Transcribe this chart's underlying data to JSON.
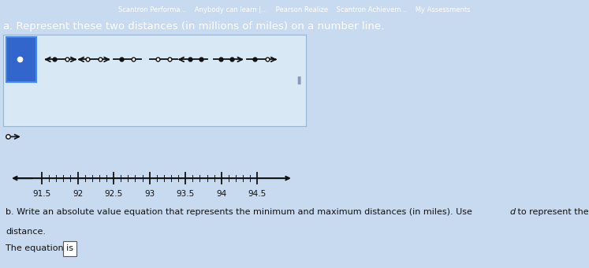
{
  "bg_color": "#c8daf0",
  "bg_color_light": "#d8e8f5",
  "bg_color_panel": "#cfe0f0",
  "nav_bar_color": "#2255a0",
  "nav_text": "Scantron Performa...    Anybody can learn |...    Pearson Realize    Scantron Achievem...    My Assessments",
  "title_text": "a. Represent these two distances (in millions of miles) on a number line.",
  "title_color": "#111133",
  "title_fontsize": 9.5,
  "number_line_ticks": [
    91.5,
    92.0,
    92.5,
    93.0,
    93.5,
    94.0,
    94.5
  ],
  "number_line_labels": [
    "91.5",
    "92",
    "92.5",
    "93",
    "93.5",
    "94",
    "94.5"
  ],
  "panel_border_color": "#9ab5d0",
  "selected_box_color": "#3366cc",
  "selected_box_border": "#4488ee",
  "dot_color": "#ffffff",
  "symbol_color": "#111111",
  "part_b_text1": "b. Write an absolute value equation that represents the minimum and maximum distances (in miles). Use ",
  "part_b_italic": "d",
  "part_b_text2": " to represent the",
  "part_b_text3": "distance.",
  "equation_label": "The equation is ",
  "fontsize_body": 8,
  "fontsize_nav": 6,
  "scroll_color": "#8899bb"
}
